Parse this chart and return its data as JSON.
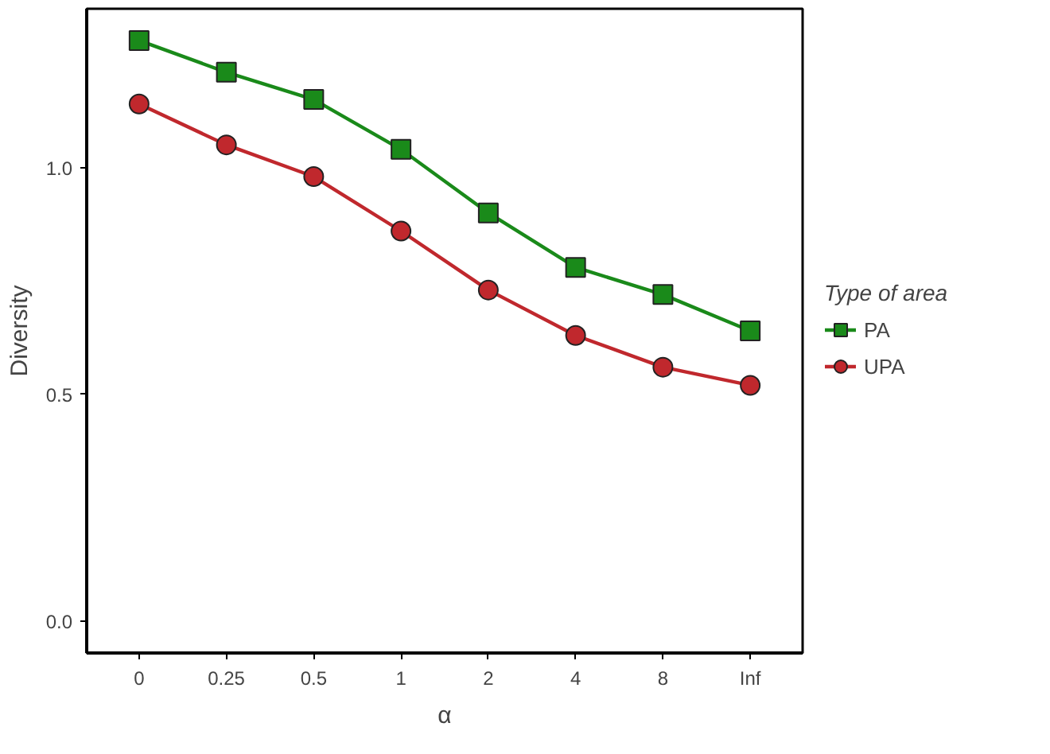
{
  "chart_data": {
    "type": "line",
    "xlabel": "α",
    "ylabel": "Diversity",
    "legend_title": "Type of area",
    "legend": "right",
    "grid": false,
    "categories": [
      "0",
      "0.25",
      "0.5",
      "1",
      "2",
      "4",
      "8",
      "Inf"
    ],
    "ylim": [
      -0.07,
      1.35
    ],
    "yticks": [
      {
        "value": 0,
        "label": "0.0"
      },
      {
        "value": 0.5,
        "label": "0.5"
      },
      {
        "value": 1,
        "label": "1.0"
      }
    ],
    "series": [
      {
        "name": "PA",
        "color": "#1a8a1a",
        "marker": "square",
        "values": [
          1.28,
          1.21,
          1.15,
          1.04,
          0.9,
          0.78,
          0.72,
          0.64
        ]
      },
      {
        "name": "UPA",
        "color": "#c0282d",
        "marker": "circle",
        "values": [
          1.14,
          1.05,
          0.98,
          0.86,
          0.73,
          0.63,
          0.56,
          0.52
        ]
      }
    ]
  }
}
